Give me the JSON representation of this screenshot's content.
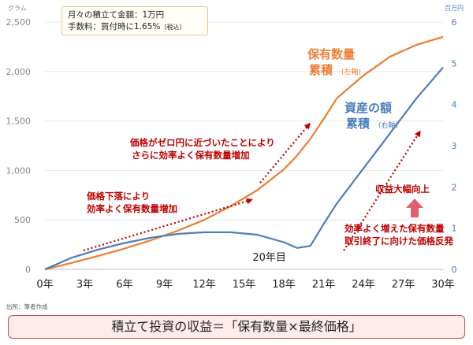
{
  "chart_data": {
    "type": "line",
    "x_tick_labels": [
      "0年",
      "3年",
      "6年",
      "9年",
      "12年",
      "15年",
      "18年",
      "21年",
      "24年",
      "27年",
      "30年"
    ],
    "x_ticks": [
      0,
      3,
      6,
      9,
      12,
      15,
      18,
      21,
      24,
      27,
      30
    ],
    "xlim": [
      0,
      30
    ],
    "left_axis": {
      "unit": "グラム",
      "ticks": [
        0,
        500,
        1000,
        1500,
        2000,
        2500
      ],
      "tick_labels": [
        "0",
        "500",
        "1,000",
        "1,500",
        "2,000",
        "2,500"
      ],
      "ylim": [
        0,
        2500
      ]
    },
    "right_axis": {
      "unit": "百万円",
      "ticks": [
        0,
        1,
        2,
        3,
        4,
        5,
        6
      ],
      "tick_labels": [
        "0",
        "1",
        "2",
        "3",
        "4",
        "5",
        "6"
      ],
      "ylim": [
        0,
        6
      ]
    },
    "series": [
      {
        "axis": "left",
        "color": "#ed7d31",
        "x": [
          0,
          2,
          4,
          6,
          8,
          10,
          12,
          14,
          16,
          18,
          19,
          20,
          21,
          22,
          24,
          26,
          28,
          30
        ],
        "y": [
          0,
          65,
          135,
          210,
          295,
          390,
          500,
          640,
          800,
          1010,
          1150,
          1320,
          1520,
          1730,
          1960,
          2150,
          2270,
          2350
        ]
      },
      {
        "axis": "right",
        "color": "#4a7ebb",
        "x": [
          0,
          2,
          4,
          6,
          8,
          10,
          12,
          14,
          16,
          18,
          19,
          20,
          21,
          22,
          24,
          26,
          28,
          30
        ],
        "y": [
          0,
          0.28,
          0.48,
          0.64,
          0.77,
          0.86,
          0.9,
          0.9,
          0.84,
          0.66,
          0.52,
          0.57,
          1.1,
          1.6,
          2.45,
          3.3,
          4.15,
          4.9
        ]
      }
    ],
    "annotations": {
      "series_labels": [
        {
          "line1": "保有数量",
          "line2": "累積",
          "axis_note": "(左軸)",
          "color": "#ed7d31"
        },
        {
          "line1": "資産の額",
          "line2": "累積",
          "axis_note": "(右軸)",
          "color": "#4a7ebb"
        }
      ],
      "notes_red": [
        {
          "line1": "価格がゼロ円に近づいたことにより",
          "line2": "さらに効率よく保有数量増加"
        },
        {
          "line1": "価格下落により",
          "line2": "効率よく保有数量増加"
        },
        {
          "line1": "効率よく増えた保有数量",
          "line2": "取引終了に向けた価格反発"
        },
        {
          "line1": "収益大幅向上",
          "line2": ""
        }
      ],
      "marker_label": "20年目",
      "marker_x": 20
    }
  },
  "info_box": {
    "line1": "月々の積立て金額：1万円",
    "line2_main": "手数料：買付時に1.65%",
    "line2_small": "（税込）"
  },
  "source": "出所：筆者作成",
  "footer": "積立て投資の収益＝「保有数量×最終価格」"
}
